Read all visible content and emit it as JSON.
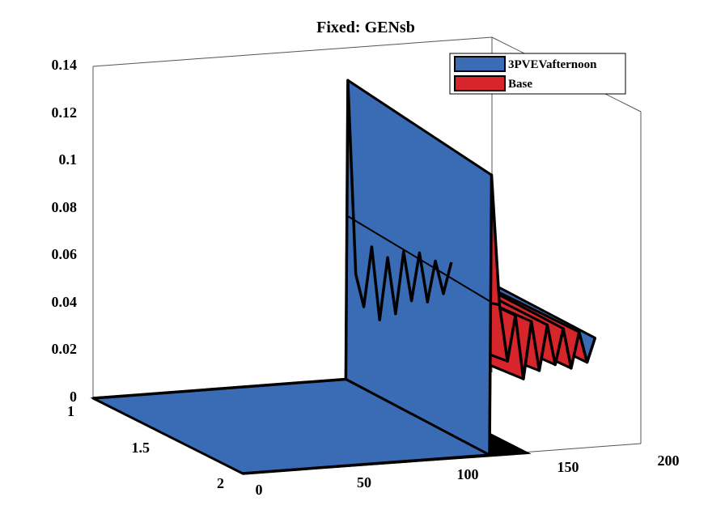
{
  "chart_data": {
    "type": "surface3d",
    "title": "Fixed: GENsb",
    "xlabel": "",
    "ylabel": "",
    "zlabel": "",
    "x_ticks": [
      "0",
      "50",
      "100",
      "150",
      "200"
    ],
    "y_ticks": [
      "1",
      "1.5",
      "2"
    ],
    "z_ticks": [
      "0",
      "0.02",
      "0.04",
      "0.06",
      "0.08",
      "0.1",
      "0.12",
      "0.14"
    ],
    "xlim": [
      0,
      200
    ],
    "ylim": [
      1,
      2
    ],
    "zlim": [
      0,
      0.14
    ],
    "grid": false,
    "legend_position": "top-right",
    "colors": {
      "series_1": "#3a6bb5",
      "series_2": "#d7262b",
      "floor": "#000000",
      "axes": "#555555"
    },
    "series": [
      {
        "name": "3PVEVafternoon",
        "y": 1,
        "x": [
          0,
          127,
          128,
          132,
          136,
          140,
          144,
          148,
          152,
          156,
          160,
          164,
          168,
          172,
          176,
          180
        ],
        "values": [
          0,
          0,
          0.126,
          0.044,
          0.03,
          0.055,
          0.024,
          0.05,
          0.026,
          0.052,
          0.031,
          0.051,
          0.03,
          0.047,
          0.033,
          0.046
        ]
      },
      {
        "name": "Base",
        "y": 2,
        "x": [
          0,
          124,
          125,
          129,
          133,
          137,
          141,
          145,
          149,
          153,
          157,
          161,
          165,
          169,
          173,
          177
        ],
        "values": [
          0,
          0,
          0.118,
          0.063,
          0.039,
          0.058,
          0.031,
          0.055,
          0.034,
          0.053,
          0.036,
          0.051,
          0.034,
          0.049,
          0.036,
          0.046
        ]
      }
    ]
  }
}
